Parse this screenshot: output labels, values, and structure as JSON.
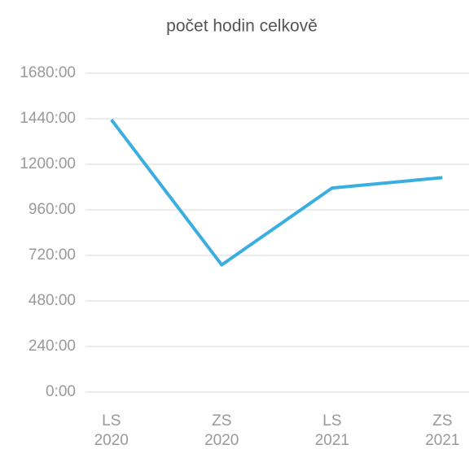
{
  "chart_data": {
    "type": "line",
    "title": "počet hodin celkově",
    "categories": [
      "LS 2020",
      "ZS 2020",
      "LS 2021",
      "ZS 2021"
    ],
    "series": [
      {
        "color": "#3aaee0",
        "values": [
          1435,
          670,
          1075,
          1130
        ]
      }
    ],
    "ylim": [
      0,
      1680
    ],
    "yticks": [
      {
        "value": 0,
        "label": "0:00"
      },
      {
        "value": 240,
        "label": "240:00"
      },
      {
        "value": 480,
        "label": "480:00"
      },
      {
        "value": 720,
        "label": "720:00"
      },
      {
        "value": 960,
        "label": "960:00"
      },
      {
        "value": 1200,
        "label": "1200:00"
      },
      {
        "value": 1440,
        "label": "1440:00"
      },
      {
        "value": 1680,
        "label": "1680:00"
      }
    ],
    "grid": true
  }
}
